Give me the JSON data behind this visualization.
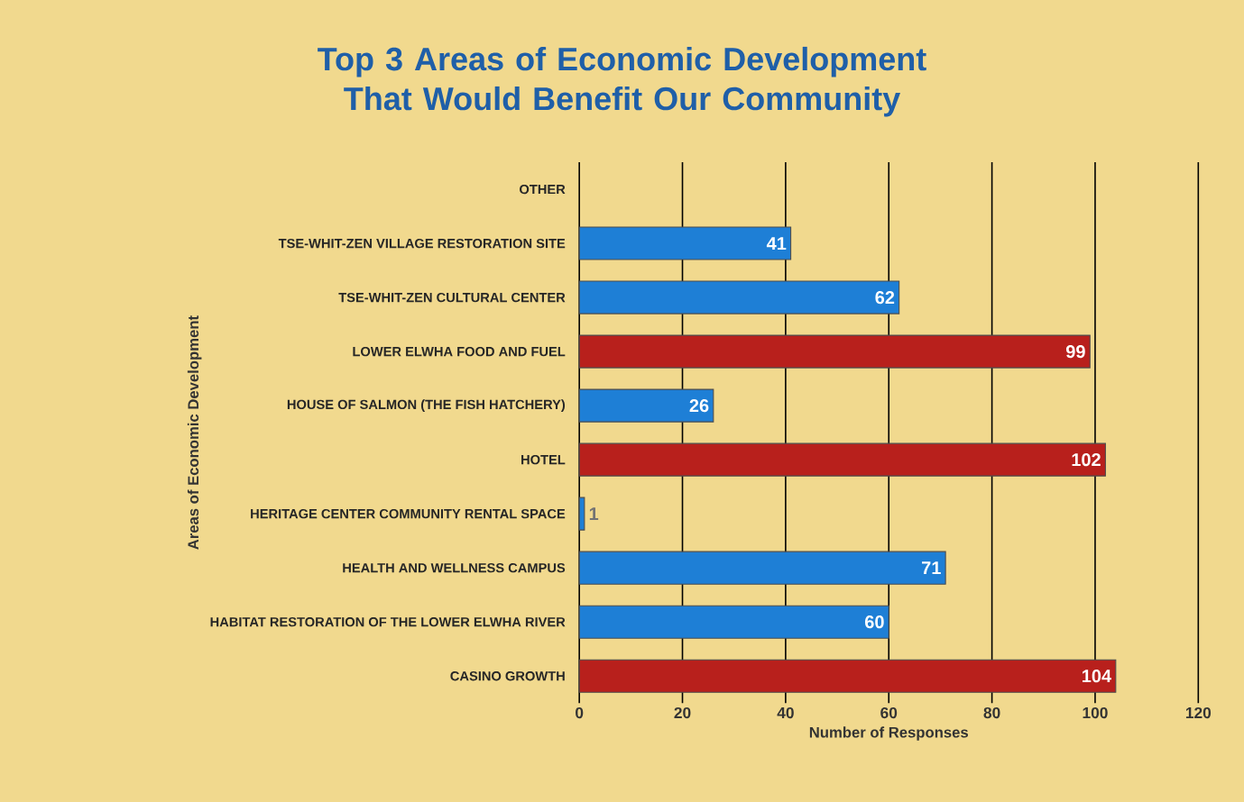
{
  "chart_data": {
    "type": "bar",
    "orientation": "horizontal",
    "title": "Top 3 Areas of Economic Development That Would Benefit Our Community",
    "xlabel": "Number of Responses",
    "ylabel": "Areas of Economic Development",
    "categories": [
      "OTHER",
      "TSE-WHIT-ZEN VILLAGE RESTORATION SITE",
      "TSE-WHIT-ZEN CULTURAL CENTER",
      "LOWER ELWHA FOOD AND FUEL",
      "HOUSE OF SALMON (THE FISH HATCHERY)",
      "HOTEL",
      "HERITAGE CENTER COMMUNITY RENTAL SPACE",
      "HEALTH AND WELLNESS CAMPUS",
      "HABITAT RESTORATION OF THE LOWER ELWHA RIVER",
      "CASINO GROWTH"
    ],
    "values": [
      null,
      41,
      62,
      99,
      26,
      102,
      1,
      71,
      60,
      104
    ],
    "colors": [
      "#1e7fd6",
      "#1e7fd6",
      "#1e7fd6",
      "#b8201c",
      "#1e7fd6",
      "#b8201c",
      "#1e7fd6",
      "#1e7fd6",
      "#1e7fd6",
      "#b8201c"
    ],
    "data_labels": true,
    "xlim": [
      0,
      120
    ],
    "xticks": [
      0,
      20,
      40,
      60,
      80,
      100,
      120
    ],
    "grid": "x"
  }
}
